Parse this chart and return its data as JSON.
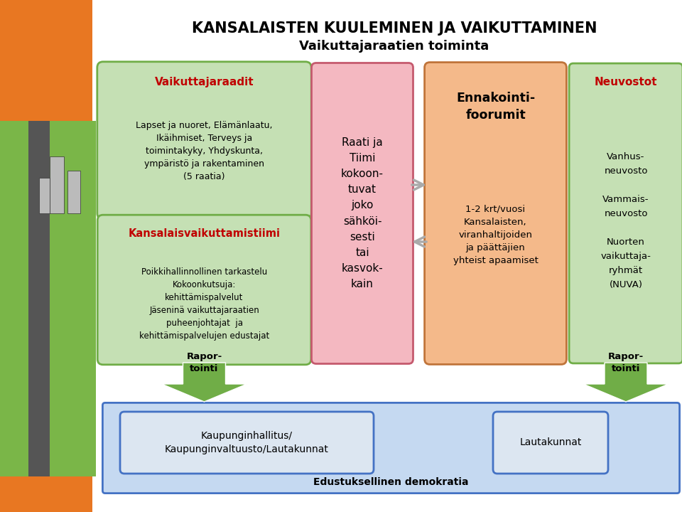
{
  "title_line1": "KANSALAISTEN KUULEMINEN JA VAIKUTTAMINEN",
  "title_line2": "Vaikuttajaraatien toiminta",
  "bg_color": "#ffffff",
  "orange_side_color": "#e87722",
  "box1_bg": "#c5e0b4",
  "box1_border": "#70ad47",
  "box1_title": "Vaikuttajaraadit",
  "box1_title_color": "#c00000",
  "box1_text": "Lapset ja nuoret, Elämänlaatu,\nIkäihmiset, Terveys ja\ntoimintakyky, Yhdyskunta,\nympäristö ja rakentaminen\n(5 raatia)",
  "box2_bg": "#c5e0b4",
  "box2_border": "#70ad47",
  "box2_title": "Kansalaisvaikuttamistiimi",
  "box2_title_color": "#c00000",
  "box2_text": "Poikkihallinnollinen tarkastelu\nKokoonkutsuja:\nkehittämispalvelut\nJäseninä vaikuttajaraatien\npuheenjohtajat  ja\nkehittämispalvelujen edustajat",
  "box3_bg": "#f4b8c1",
  "box3_border": "#c55a6e",
  "box3_text": "Raati ja\nTiimi\nkokoon-\ntuvat\njoko\nsähköi-\nsesti\ntai\nkasvok-\nkain",
  "box4_bg": "#f4b98a",
  "box4_border": "#c0743a",
  "box4_title": "Ennakointi-\nfoorumit",
  "box4_text": "1-2 krt/vuosi\nKansalaisten,\nviranhaltijoiden\nja päättäjien\nyhteist apaamiset",
  "box5_bg": "#c5e0b4",
  "box5_border": "#70ad47",
  "box5_title": "Neuvostot",
  "box5_title_color": "#c00000",
  "box5_text": "Vanhus-\nneuvosto\n\nVammais-\nneuvosto\n\nNuorten\nvaikuttaja-\nryhmät\n(NUVA)",
  "arrow_down1_text": "Rapor-\ntointi",
  "arrow_down2_text": "Rapor-\ntointi",
  "arrow_color": "#70ad47",
  "bottom_big_bg": "#c5d9f1",
  "bottom_big_border": "#4472c4",
  "bottom_inner1_bg": "#dce6f1",
  "bottom_inner1_border": "#4472c4",
  "bottom_inner1_text": "Kaupunginhallitus/\nKaupunginvaltuusto/Lautakunnat",
  "bottom_inner2_bg": "#dce6f1",
  "bottom_inner2_border": "#4472c4",
  "bottom_inner2_text": "Lautakunnat",
  "bottom_label": "Edustuksellinen demokratia",
  "arrow_right_color": "#7f7f7f",
  "arrow_left_color": "#7f7f7f"
}
